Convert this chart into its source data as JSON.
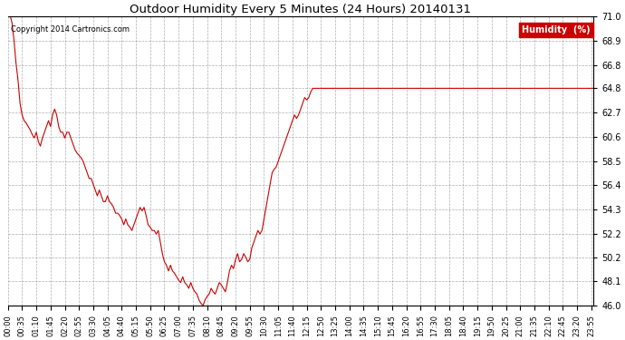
{
  "title": "Outdoor Humidity Every 5 Minutes (24 Hours) 20140131",
  "copyright": "Copyright 2014 Cartronics.com",
  "legend_label": "Humidity  (%)",
  "line_color": "#cc0000",
  "bg_color": "#ffffff",
  "grid_color": "#999999",
  "ylim": [
    46.0,
    71.0
  ],
  "yticks": [
    46.0,
    48.1,
    50.2,
    52.2,
    54.3,
    56.4,
    58.5,
    60.6,
    62.7,
    64.8,
    66.8,
    68.9,
    71.0
  ],
  "humidity_values": [
    71.0,
    71.2,
    70.5,
    69.0,
    67.0,
    65.5,
    63.5,
    62.5,
    62.0,
    61.8,
    61.5,
    61.2,
    60.8,
    60.5,
    61.0,
    60.2,
    59.8,
    60.5,
    61.0,
    61.5,
    62.0,
    61.5,
    62.5,
    63.0,
    62.5,
    61.5,
    61.0,
    61.0,
    60.5,
    61.0,
    61.0,
    60.5,
    60.0,
    59.5,
    59.2,
    59.0,
    58.8,
    58.5,
    58.0,
    57.5,
    57.0,
    57.0,
    56.5,
    56.0,
    55.5,
    56.0,
    55.5,
    55.0,
    55.0,
    55.5,
    55.0,
    54.8,
    54.5,
    54.0,
    54.0,
    53.8,
    53.5,
    53.0,
    53.5,
    53.0,
    52.8,
    52.5,
    53.0,
    53.5,
    54.0,
    54.5,
    54.2,
    54.5,
    53.8,
    53.0,
    52.8,
    52.5,
    52.5,
    52.2,
    52.5,
    51.5,
    50.5,
    49.8,
    49.5,
    49.0,
    49.5,
    49.0,
    48.8,
    48.5,
    48.2,
    48.0,
    48.5,
    48.0,
    47.8,
    47.5,
    48.0,
    47.5,
    47.2,
    47.0,
    46.5,
    46.2,
    46.0,
    46.5,
    46.8,
    47.0,
    47.5,
    47.2,
    47.0,
    47.5,
    48.0,
    47.8,
    47.5,
    47.2,
    48.0,
    49.0,
    49.5,
    49.2,
    50.0,
    50.5,
    49.8,
    50.0,
    50.5,
    50.2,
    49.8,
    50.0,
    51.0,
    51.5,
    52.0,
    52.5,
    52.2,
    52.5,
    53.5,
    54.5,
    55.5,
    56.5,
    57.5,
    57.8,
    58.0,
    58.5,
    59.0,
    59.5,
    60.0,
    60.5,
    61.0,
    61.5,
    62.0,
    62.5,
    62.2,
    62.5,
    63.0,
    63.5,
    64.0,
    63.8,
    64.0,
    64.5,
    64.8,
    64.8,
    64.8,
    64.8,
    64.8,
    64.8,
    64.8,
    64.8,
    64.8,
    64.8,
    64.8,
    64.8,
    64.8,
    64.8,
    64.8,
    64.8,
    64.8,
    64.8,
    64.8,
    64.8,
    64.8,
    64.8,
    64.8,
    64.8,
    64.8,
    64.8,
    64.8,
    64.8,
    64.8,
    64.8,
    64.8,
    64.8,
    64.8,
    64.8,
    64.8,
    64.8,
    64.8,
    64.8,
    64.8,
    64.8,
    64.8,
    64.8,
    64.8,
    64.8,
    64.8,
    64.8,
    64.8,
    64.8,
    64.8,
    64.8,
    64.8,
    64.8,
    64.8,
    64.8,
    64.8,
    64.8,
    64.8,
    64.8,
    64.8,
    64.8,
    64.8,
    64.8,
    64.8,
    64.8,
    64.8,
    64.8,
    64.8,
    64.8,
    64.8,
    64.8,
    64.8,
    64.8,
    64.8,
    64.8,
    64.8,
    64.8,
    64.8,
    64.8,
    64.8,
    64.8,
    64.8,
    64.8,
    64.8,
    64.8,
    64.8,
    64.8,
    64.8,
    64.8,
    64.8,
    64.8,
    64.8,
    64.8,
    64.8,
    64.8,
    64.8,
    64.8,
    64.8,
    64.8,
    64.8,
    64.8,
    64.8,
    64.8,
    64.8,
    64.8,
    64.8,
    64.8,
    64.8,
    64.8,
    64.8,
    64.8,
    64.8,
    64.8,
    64.8,
    64.8,
    64.8,
    64.8,
    64.8,
    64.8,
    64.8,
    64.8,
    64.8,
    64.8,
    64.8,
    64.8,
    64.8,
    64.8,
    64.8,
    64.8,
    64.8,
    64.8,
    64.8,
    64.8,
    64.8,
    64.8,
    64.8,
    64.8,
    64.8,
    64.8,
    64.8
  ]
}
